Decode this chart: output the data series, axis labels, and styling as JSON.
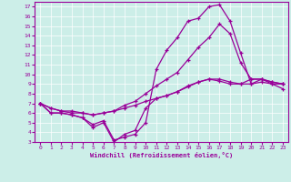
{
  "xlabel": "Windchill (Refroidissement éolien,°C)",
  "bg_color": "#cceee8",
  "line_color": "#990099",
  "xlim": [
    -0.5,
    23.5
  ],
  "ylim": [
    3,
    17.5
  ],
  "yticks": [
    3,
    4,
    5,
    6,
    7,
    8,
    9,
    10,
    11,
    12,
    13,
    14,
    15,
    16,
    17
  ],
  "xticks": [
    0,
    1,
    2,
    3,
    4,
    5,
    6,
    7,
    8,
    9,
    10,
    11,
    12,
    13,
    14,
    15,
    16,
    17,
    18,
    19,
    20,
    21,
    22,
    23
  ],
  "series": [
    {
      "x": [
        0,
        1,
        2,
        3,
        4,
        5,
        6,
        7,
        8,
        9,
        10,
        11,
        12,
        13,
        14,
        15,
        16,
        17,
        18,
        19,
        20,
        21,
        22,
        23
      ],
      "y": [
        7.0,
        6.5,
        6.2,
        6.2,
        6.0,
        5.8,
        6.0,
        6.2,
        6.5,
        6.8,
        7.2,
        7.5,
        7.8,
        8.2,
        8.7,
        9.2,
        9.5,
        9.5,
        9.2,
        9.0,
        9.0,
        9.5,
        9.2,
        9.0
      ]
    },
    {
      "x": [
        0,
        1,
        2,
        3,
        4,
        5,
        6,
        7,
        8,
        9,
        10,
        11,
        12,
        13,
        14,
        15,
        16,
        17,
        18,
        19,
        20,
        21,
        22,
        23
      ],
      "y": [
        7.0,
        6.5,
        6.2,
        6.0,
        6.0,
        5.8,
        6.0,
        6.2,
        6.8,
        7.2,
        8.0,
        8.8,
        9.5,
        10.2,
        11.5,
        12.8,
        13.8,
        15.2,
        14.2,
        11.2,
        9.5,
        9.5,
        9.2,
        9.0
      ]
    },
    {
      "x": [
        0,
        1,
        2,
        3,
        4,
        5,
        6,
        7,
        8,
        9,
        10,
        11,
        12,
        13,
        14,
        15,
        16,
        17,
        18,
        19,
        20,
        21,
        22,
        23
      ],
      "y": [
        7.0,
        6.0,
        6.0,
        5.8,
        5.5,
        4.8,
        5.2,
        3.2,
        3.5,
        3.8,
        5.0,
        10.5,
        12.5,
        13.8,
        15.5,
        15.8,
        17.0,
        17.2,
        15.5,
        12.2,
        9.0,
        9.2,
        9.0,
        8.5
      ]
    },
    {
      "x": [
        0,
        1,
        2,
        3,
        4,
        5,
        6,
        7,
        8,
        9,
        10,
        11,
        12,
        13,
        14,
        15,
        16,
        17,
        18,
        19,
        20,
        21,
        22,
        23
      ],
      "y": [
        7.0,
        6.0,
        6.0,
        5.8,
        5.5,
        4.5,
        5.0,
        3.0,
        3.8,
        4.2,
        6.5,
        7.5,
        7.8,
        8.2,
        8.8,
        9.2,
        9.5,
        9.3,
        9.0,
        9.0,
        9.5,
        9.5,
        9.0,
        9.0
      ]
    }
  ]
}
